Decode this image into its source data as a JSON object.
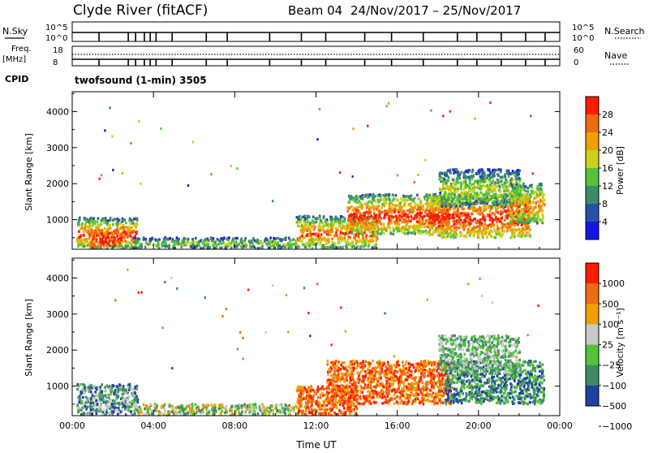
{
  "header": {
    "station": "Clyde River (fitACF)",
    "beam": "Beam 04",
    "date_range": "24/Nov/2017 – 25/Nov/2017"
  },
  "strips": {
    "nsky_label": "N.Sky",
    "nsky_top": "10^5",
    "nsky_bottom": "10^0",
    "nsky_right_top": "10^5",
    "nsky_right_bottom": "10^0",
    "nsearch_label": "N.Search",
    "freq_label": "Freq.",
    "freq_unit": "[MHz]",
    "freq_top": "18",
    "freq_bottom": "8",
    "nave_label": "Nave",
    "nave_top": "60",
    "nave_bottom": "0",
    "cpid_label": "CPID",
    "cpid_value": "twofsound (1-min) 3505"
  },
  "colors": {
    "power_scale": [
      "#1515e6",
      "#2a4fa8",
      "#3f8a6a",
      "#55c23a",
      "#c8d21a",
      "#f0a000",
      "#f06a10",
      "#ff1a00"
    ],
    "velocity_scale": [
      "#2040a0",
      "#3f8a6a",
      "#55c23a",
      "#c8c8c8",
      "#f0a000",
      "#f06a10",
      "#ff1a00"
    ]
  },
  "chart_data": [
    {
      "type": "heatmap",
      "panel": "power",
      "xlabel": "",
      "ylabel": "Slant Range [km]",
      "x_ticks": [
        "00:00",
        "04:00",
        "08:00",
        "12:00",
        "16:00",
        "20:00",
        "00:00"
      ],
      "x_range_hours": [
        0,
        24
      ],
      "y_range_km": [
        180,
        4550
      ],
      "y_ticks": [
        1000,
        2000,
        3000,
        4000
      ],
      "colorbar_label": "Power [dB]",
      "colorbar_ticks": [
        "28",
        "24",
        "20",
        "16",
        "12",
        "8",
        "4"
      ],
      "colorbar_range": [
        0,
        32
      ],
      "blobs": [
        {
          "t0": 0.2,
          "t1": 3.2,
          "r0": 200,
          "r1": 1050,
          "v0": 4,
          "v1": 30
        },
        {
          "t0": 0.8,
          "t1": 2.4,
          "r0": 250,
          "r1": 700,
          "v0": 22,
          "v1": 31
        },
        {
          "t0": 3.0,
          "t1": 11.0,
          "r0": 200,
          "r1": 500,
          "v0": 3,
          "v1": 16
        },
        {
          "t0": 11.0,
          "t1": 15.0,
          "r0": 200,
          "r1": 1100,
          "v0": 4,
          "v1": 28
        },
        {
          "t0": 13.5,
          "t1": 18.5,
          "r0": 600,
          "r1": 1700,
          "v0": 6,
          "v1": 31
        },
        {
          "t0": 17.5,
          "t1": 22.5,
          "r0": 500,
          "r1": 1700,
          "v0": 10,
          "v1": 31
        },
        {
          "t0": 18.0,
          "t1": 22.0,
          "r0": 1350,
          "r1": 2400,
          "v0": 3,
          "v1": 18
        },
        {
          "t0": 21.5,
          "t1": 23.2,
          "r0": 900,
          "r1": 2000,
          "v0": 6,
          "v1": 26
        }
      ]
    },
    {
      "type": "heatmap",
      "panel": "velocity",
      "xlabel": "Time UT",
      "ylabel": "Slant Range [km]",
      "x_ticks": [
        "00:00",
        "04:00",
        "08:00",
        "12:00",
        "16:00",
        "20:00",
        "00:00"
      ],
      "x_range_hours": [
        0,
        24
      ],
      "y_range_km": [
        180,
        4550
      ],
      "y_ticks": [
        1000,
        2000,
        3000,
        4000
      ],
      "colorbar_label": "Velocity [m s⁻¹]",
      "colorbar_ticks": [
        "1000",
        "500",
        "100",
        "25",
        "−25",
        "−100",
        "−500",
        "−1000"
      ],
      "blobs": [
        {
          "t0": 0.2,
          "t1": 3.2,
          "r0": 200,
          "r1": 1050,
          "v0": 0,
          "v1": 3
        },
        {
          "t0": 3.0,
          "t1": 11.0,
          "r0": 200,
          "r1": 500,
          "v0": 1,
          "v1": 4
        },
        {
          "t0": 11.0,
          "t1": 14.0,
          "r0": 200,
          "r1": 1000,
          "v0": 4,
          "v1": 6
        },
        {
          "t0": 12.5,
          "t1": 18.6,
          "r0": 500,
          "r1": 1700,
          "v0": 4,
          "v1": 6
        },
        {
          "t0": 18.3,
          "t1": 23.2,
          "r0": 500,
          "r1": 1700,
          "v0": 0,
          "v1": 2
        },
        {
          "t0": 18.0,
          "t1": 22.0,
          "r0": 1350,
          "r1": 2400,
          "v0": 1,
          "v1": 3
        }
      ]
    }
  ]
}
